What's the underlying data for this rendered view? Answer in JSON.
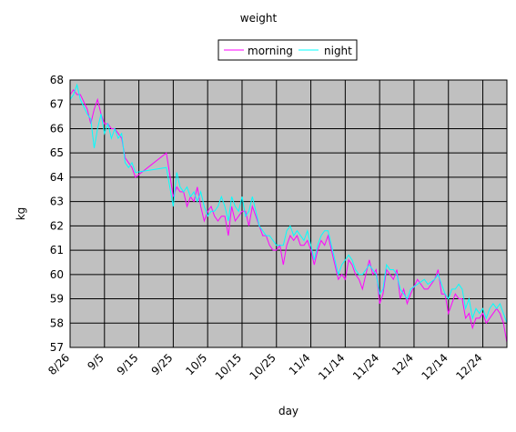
{
  "chart_data": {
    "type": "line",
    "title": "weight",
    "xlabel": "day",
    "ylabel": "kg",
    "ylim": [
      57,
      68
    ],
    "yticks": [
      "57",
      "58",
      "59",
      "60",
      "61",
      "62",
      "63",
      "64",
      "65",
      "66",
      "67",
      "68"
    ],
    "xlim": [
      "2008-08-26",
      "2008-12-31"
    ],
    "xtick_labels": [
      "8/26",
      "9/5",
      "9/15",
      "9/25",
      "10/5",
      "10/15",
      "10/25",
      "11/4",
      "11/14",
      "11/24",
      "12/4",
      "12/14",
      "12/24"
    ],
    "grid": true,
    "plot_background": "#c0c0c0",
    "legend": "top-center",
    "series": [
      {
        "name": "morning",
        "color": "#ff00ff",
        "points": [
          [
            "2008-08-26",
            67.4
          ],
          [
            "2008-08-27",
            67.6
          ],
          [
            "2008-08-28",
            67.4
          ],
          [
            "2008-08-29",
            67.4
          ],
          [
            "2008-08-31",
            66.8
          ],
          [
            "2008-09-01",
            66.2
          ],
          [
            "2008-09-02",
            66.8
          ],
          [
            "2008-09-03",
            67.2
          ],
          [
            "2008-09-04",
            66.6
          ],
          [
            "2008-09-05",
            66.2
          ],
          [
            "2008-09-06",
            66.2
          ],
          [
            "2008-09-07",
            66.0
          ],
          [
            "2008-09-08",
            66.0
          ],
          [
            "2008-09-09",
            65.8
          ],
          [
            "2008-09-10",
            65.6
          ],
          [
            "2008-09-11",
            64.8
          ],
          [
            "2008-09-12",
            64.6
          ],
          [
            "2008-09-13",
            64.4
          ],
          [
            "2008-09-14",
            64.0
          ],
          [
            "2008-09-23",
            65.0
          ],
          [
            "2008-09-25",
            63.2
          ],
          [
            "2008-09-26",
            63.6
          ],
          [
            "2008-09-27",
            63.4
          ],
          [
            "2008-09-28",
            63.4
          ],
          [
            "2008-09-29",
            62.8
          ],
          [
            "2008-09-30",
            63.2
          ],
          [
            "2008-10-01",
            63.0
          ],
          [
            "2008-10-02",
            63.6
          ],
          [
            "2008-10-03",
            62.8
          ],
          [
            "2008-10-04",
            62.2
          ],
          [
            "2008-10-05",
            62.6
          ],
          [
            "2008-10-06",
            62.8
          ],
          [
            "2008-10-07",
            62.4
          ],
          [
            "2008-10-08",
            62.2
          ],
          [
            "2008-10-09",
            62.4
          ],
          [
            "2008-10-10",
            62.4
          ],
          [
            "2008-10-11",
            61.6
          ],
          [
            "2008-10-12",
            62.8
          ],
          [
            "2008-10-13",
            62.2
          ],
          [
            "2008-10-14",
            62.4
          ],
          [
            "2008-10-15",
            62.6
          ],
          [
            "2008-10-16",
            62.6
          ],
          [
            "2008-10-17",
            62.0
          ],
          [
            "2008-10-18",
            62.8
          ],
          [
            "2008-10-19",
            62.4
          ],
          [
            "2008-10-20",
            62.0
          ],
          [
            "2008-10-21",
            61.6
          ],
          [
            "2008-10-22",
            61.6
          ],
          [
            "2008-10-23",
            61.2
          ],
          [
            "2008-10-24",
            61.0
          ],
          [
            "2008-10-25",
            61.0
          ],
          [
            "2008-10-26",
            61.2
          ],
          [
            "2008-10-27",
            60.4
          ],
          [
            "2008-10-28",
            61.2
          ],
          [
            "2008-10-29",
            61.6
          ],
          [
            "2008-10-30",
            61.4
          ],
          [
            "2008-10-31",
            61.6
          ],
          [
            "2008-11-01",
            61.2
          ],
          [
            "2008-11-02",
            61.2
          ],
          [
            "2008-11-03",
            61.4
          ],
          [
            "2008-11-04",
            61.0
          ],
          [
            "2008-11-05",
            60.4
          ],
          [
            "2008-11-06",
            61.0
          ],
          [
            "2008-11-07",
            61.4
          ],
          [
            "2008-11-08",
            61.2
          ],
          [
            "2008-11-09",
            61.6
          ],
          [
            "2008-11-10",
            61.0
          ],
          [
            "2008-11-11",
            60.4
          ],
          [
            "2008-11-12",
            59.8
          ],
          [
            "2008-11-13",
            60.0
          ],
          [
            "2008-11-14",
            59.8
          ],
          [
            "2008-11-15",
            60.6
          ],
          [
            "2008-11-16",
            60.4
          ],
          [
            "2008-11-17",
            60.0
          ],
          [
            "2008-11-18",
            59.8
          ],
          [
            "2008-11-19",
            59.4
          ],
          [
            "2008-11-20",
            60.0
          ],
          [
            "2008-11-21",
            60.6
          ],
          [
            "2008-11-22",
            60.0
          ],
          [
            "2008-11-23",
            60.2
          ],
          [
            "2008-11-24",
            58.8
          ],
          [
            "2008-11-25",
            59.2
          ],
          [
            "2008-11-26",
            60.2
          ],
          [
            "2008-11-27",
            60.0
          ],
          [
            "2008-11-28",
            59.8
          ],
          [
            "2008-11-29",
            60.2
          ],
          [
            "2008-11-30",
            59.0
          ],
          [
            "2008-12-01",
            59.4
          ],
          [
            "2008-12-02",
            58.8
          ],
          [
            "2008-12-03",
            59.2
          ],
          [
            "2008-12-05",
            59.8
          ],
          [
            "2008-12-07",
            59.4
          ],
          [
            "2008-12-08",
            59.4
          ],
          [
            "2008-12-10",
            59.8
          ],
          [
            "2008-12-11",
            60.2
          ],
          [
            "2008-12-12",
            59.2
          ],
          [
            "2008-12-13",
            59.2
          ],
          [
            "2008-12-14",
            58.4
          ],
          [
            "2008-12-15",
            58.8
          ],
          [
            "2008-12-16",
            59.2
          ],
          [
            "2008-12-17",
            59.0
          ],
          [
            "2008-12-18",
            59.0
          ],
          [
            "2008-12-19",
            58.2
          ],
          [
            "2008-12-20",
            58.4
          ],
          [
            "2008-12-21",
            57.8
          ],
          [
            "2008-12-22",
            58.2
          ],
          [
            "2008-12-23",
            58.2
          ],
          [
            "2008-12-24",
            58.4
          ],
          [
            "2008-12-25",
            58.0
          ],
          [
            "2008-12-26",
            58.2
          ],
          [
            "2008-12-27",
            58.4
          ],
          [
            "2008-12-28",
            58.6
          ],
          [
            "2008-12-29",
            58.4
          ],
          [
            "2008-12-30",
            58.0
          ],
          [
            "2008-12-31",
            57.2
          ]
        ]
      },
      {
        "name": "night",
        "color": "#00ffff",
        "points": [
          [
            "2008-08-26",
            67.2
          ],
          [
            "2008-08-27",
            67.4
          ],
          [
            "2008-08-28",
            67.8
          ],
          [
            "2008-08-29",
            67.2
          ],
          [
            "2008-08-31",
            66.6
          ],
          [
            "2008-09-01",
            66.4
          ],
          [
            "2008-09-02",
            65.2
          ],
          [
            "2008-09-03",
            66.0
          ],
          [
            "2008-09-04",
            66.6
          ],
          [
            "2008-09-05",
            65.8
          ],
          [
            "2008-09-06",
            66.2
          ],
          [
            "2008-09-07",
            65.6
          ],
          [
            "2008-09-08",
            66.0
          ],
          [
            "2008-09-09",
            65.6
          ],
          [
            "2008-09-10",
            65.8
          ],
          [
            "2008-09-11",
            64.6
          ],
          [
            "2008-09-12",
            64.4
          ],
          [
            "2008-09-13",
            64.6
          ],
          [
            "2008-09-14",
            64.2
          ],
          [
            "2008-09-23",
            64.4
          ],
          [
            "2008-09-25",
            62.8
          ],
          [
            "2008-09-26",
            64.2
          ],
          [
            "2008-09-27",
            63.6
          ],
          [
            "2008-09-28",
            63.4
          ],
          [
            "2008-09-29",
            63.6
          ],
          [
            "2008-09-30",
            63.2
          ],
          [
            "2008-10-01",
            63.4
          ],
          [
            "2008-10-02",
            63.0
          ],
          [
            "2008-10-03",
            63.4
          ],
          [
            "2008-10-04",
            62.8
          ],
          [
            "2008-10-05",
            62.4
          ],
          [
            "2008-10-06",
            62.6
          ],
          [
            "2008-10-07",
            62.6
          ],
          [
            "2008-10-08",
            62.8
          ],
          [
            "2008-10-09",
            63.2
          ],
          [
            "2008-10-10",
            62.8
          ],
          [
            "2008-10-11",
            62.2
          ],
          [
            "2008-10-12",
            63.2
          ],
          [
            "2008-10-13",
            62.8
          ],
          [
            "2008-10-14",
            62.6
          ],
          [
            "2008-10-15",
            63.2
          ],
          [
            "2008-10-16",
            62.4
          ],
          [
            "2008-10-17",
            62.6
          ],
          [
            "2008-10-18",
            63.2
          ],
          [
            "2008-10-19",
            62.6
          ],
          [
            "2008-10-20",
            62.0
          ],
          [
            "2008-10-21",
            61.8
          ],
          [
            "2008-10-22",
            61.6
          ],
          [
            "2008-10-23",
            61.6
          ],
          [
            "2008-10-24",
            61.4
          ],
          [
            "2008-10-25",
            61.2
          ],
          [
            "2008-10-26",
            61.2
          ],
          [
            "2008-10-27",
            61.2
          ],
          [
            "2008-10-28",
            61.8
          ],
          [
            "2008-10-29",
            62.0
          ],
          [
            "2008-10-30",
            61.6
          ],
          [
            "2008-10-31",
            61.8
          ],
          [
            "2008-11-01",
            61.6
          ],
          [
            "2008-11-02",
            61.4
          ],
          [
            "2008-11-03",
            61.8
          ],
          [
            "2008-11-04",
            61.2
          ],
          [
            "2008-11-05",
            60.6
          ],
          [
            "2008-11-06",
            61.2
          ],
          [
            "2008-11-07",
            61.6
          ],
          [
            "2008-11-08",
            61.8
          ],
          [
            "2008-11-09",
            61.8
          ],
          [
            "2008-11-10",
            61.2
          ],
          [
            "2008-11-11",
            60.6
          ],
          [
            "2008-11-12",
            60.0
          ],
          [
            "2008-11-13",
            60.4
          ],
          [
            "2008-11-14",
            60.6
          ],
          [
            "2008-11-15",
            60.8
          ],
          [
            "2008-11-16",
            60.6
          ],
          [
            "2008-11-17",
            60.2
          ],
          [
            "2008-11-18",
            60.0
          ],
          [
            "2008-11-19",
            60.0
          ],
          [
            "2008-11-20",
            60.2
          ],
          [
            "2008-11-21",
            60.4
          ],
          [
            "2008-11-22",
            60.2
          ],
          [
            "2008-11-23",
            60.0
          ],
          [
            "2008-11-24",
            59.2
          ],
          [
            "2008-11-25",
            59.4
          ],
          [
            "2008-11-26",
            60.4
          ],
          [
            "2008-11-27",
            60.2
          ],
          [
            "2008-11-28",
            60.2
          ],
          [
            "2008-11-29",
            60.0
          ],
          [
            "2008-11-30",
            59.4
          ],
          [
            "2008-12-01",
            59.2
          ],
          [
            "2008-12-02",
            59.0
          ],
          [
            "2008-12-03",
            59.4
          ],
          [
            "2008-12-05",
            59.6
          ],
          [
            "2008-12-07",
            59.8
          ],
          [
            "2008-12-08",
            59.6
          ],
          [
            "2008-12-10",
            59.8
          ],
          [
            "2008-12-11",
            60.0
          ],
          [
            "2008-12-12",
            59.6
          ],
          [
            "2008-12-13",
            59.2
          ],
          [
            "2008-12-14",
            59.0
          ],
          [
            "2008-12-15",
            59.4
          ],
          [
            "2008-12-16",
            59.4
          ],
          [
            "2008-12-17",
            59.6
          ],
          [
            "2008-12-18",
            59.4
          ],
          [
            "2008-12-19",
            58.6
          ],
          [
            "2008-12-20",
            59.0
          ],
          [
            "2008-12-21",
            58.2
          ],
          [
            "2008-12-22",
            58.6
          ],
          [
            "2008-12-23",
            58.4
          ],
          [
            "2008-12-24",
            58.6
          ],
          [
            "2008-12-25",
            58.2
          ],
          [
            "2008-12-26",
            58.6
          ],
          [
            "2008-12-27",
            58.8
          ],
          [
            "2008-12-28",
            58.6
          ],
          [
            "2008-12-29",
            58.8
          ],
          [
            "2008-12-30",
            58.4
          ],
          [
            "2008-12-31",
            58.0
          ]
        ]
      }
    ]
  }
}
